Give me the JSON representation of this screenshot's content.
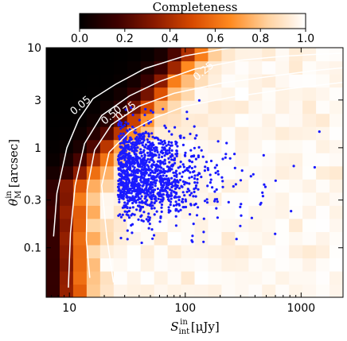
{
  "chart_data": {
    "type": "heatmap",
    "title": "",
    "colorbar": {
      "label": "Completeness",
      "range": [
        0.0,
        1.0
      ],
      "ticks": [
        "0.0",
        "0.2",
        "0.4",
        "0.6",
        "0.8",
        "1.0"
      ],
      "colors": [
        "#000000",
        "#3d0000",
        "#8b1a00",
        "#d84a00",
        "#ff8a20",
        "#ffd2a0",
        "#ffffff"
      ]
    },
    "xlabel": "S_int^in [μJy]",
    "xlabel_main": "S",
    "xlabel_sub": "int",
    "xlabel_sup": "in",
    "xlabel_unit": "[μJy]",
    "ylabel": "θ_M^in [arcsec]",
    "ylabel_main": "θ",
    "ylabel_sub": "M",
    "ylabel_sup": "in",
    "ylabel_unit": "[arcsec]",
    "xscale": "log",
    "yscale": "log",
    "xlim": [
      6.3,
      2300
    ],
    "ylim": [
      0.032,
      10
    ],
    "xticks": [
      {
        "value": 10,
        "label": "10"
      },
      {
        "value": 100,
        "label": "100"
      },
      {
        "value": 1000,
        "label": "1000"
      }
    ],
    "yticks": [
      {
        "value": 10,
        "label": "10"
      },
      {
        "value": 3,
        "label": "3"
      },
      {
        "value": 1,
        "label": "1"
      },
      {
        "value": 0.3,
        "label": "0.3"
      },
      {
        "value": 0.1,
        "label": "0.1"
      }
    ],
    "contour_labels": [
      {
        "text": "0.05",
        "x": 13,
        "y": 2.5
      },
      {
        "text": "0.50",
        "x": 24,
        "y": 2.0
      },
      {
        "text": "0.75",
        "x": 32,
        "y": 2.2
      },
      {
        "text": "0.25",
        "x": 150,
        "y": 5.5
      }
    ],
    "scatter_color": "#1a1aff",
    "contour_color": "#ffffff",
    "contours": [
      {
        "level": 0.05,
        "points": [
          [
            7.3,
            0.13
          ],
          [
            7.8,
            0.35
          ],
          [
            9.5,
            1.0
          ],
          [
            12,
            1.9
          ],
          [
            16,
            3.1
          ],
          [
            25,
            4.3
          ],
          [
            45,
            6.2
          ],
          [
            100,
            8.3
          ],
          [
            250,
            10
          ]
        ]
      },
      {
        "level": 0.25,
        "points": [
          [
            9.8,
            0.04
          ],
          [
            10.2,
            0.14
          ],
          [
            11.2,
            0.42
          ],
          [
            13.5,
            1.1
          ],
          [
            19,
            2.1
          ],
          [
            33,
            3.3
          ],
          [
            60,
            4.6
          ],
          [
            120,
            6.1
          ],
          [
            300,
            7.5
          ],
          [
            700,
            8.2
          ],
          [
            1400,
            8.6
          ],
          [
            2300,
            8.8
          ]
        ]
      },
      {
        "level": 0.5,
        "points": [
          [
            15,
            0.05
          ],
          [
            14,
            0.12
          ],
          [
            14.2,
            0.38
          ],
          [
            16.5,
            0.95
          ],
          [
            23,
            1.7
          ],
          [
            40,
            2.6
          ],
          [
            80,
            3.5
          ],
          [
            200,
            4.4
          ],
          [
            500,
            5.1
          ],
          [
            1300,
            5.9
          ],
          [
            2300,
            6.3
          ]
        ]
      },
      {
        "level": 0.75,
        "points": [
          [
            24,
            0.045
          ],
          [
            21,
            0.13
          ],
          [
            19,
            0.42
          ],
          [
            22,
            0.9
          ],
          [
            33,
            1.45
          ],
          [
            55,
            2.0
          ],
          [
            100,
            2.6
          ],
          [
            250,
            3.2
          ],
          [
            800,
            3.9
          ],
          [
            2300,
            4.5
          ]
        ]
      }
    ]
  }
}
